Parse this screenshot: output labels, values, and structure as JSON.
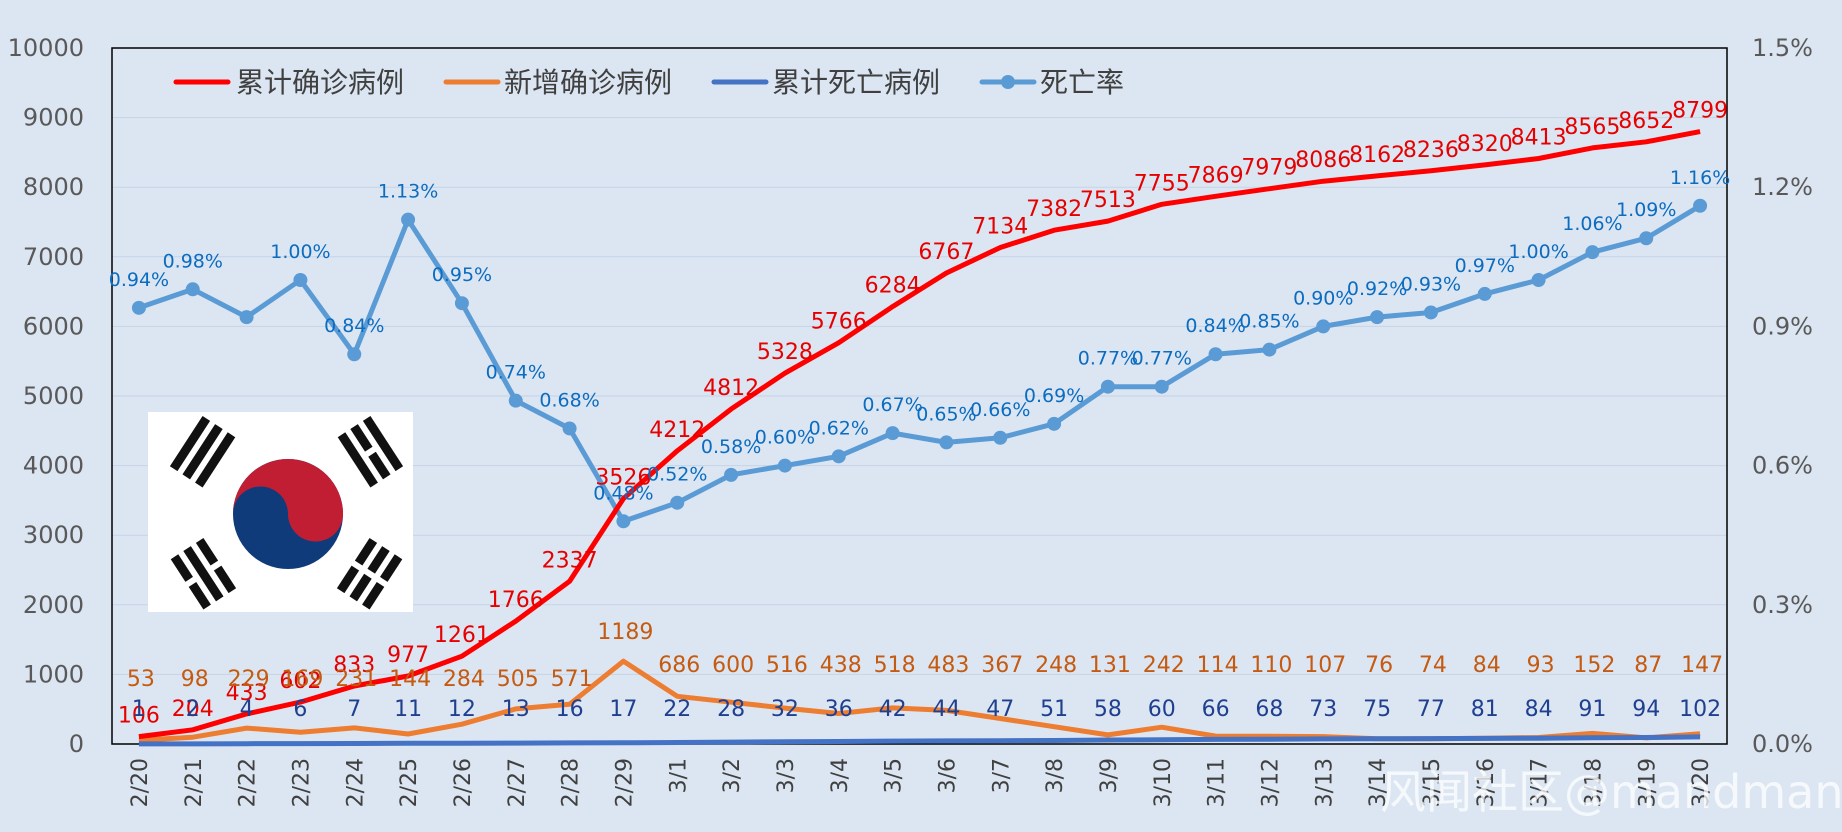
{
  "chart_data": {
    "type": "line",
    "dates": [
      "2/20",
      "2/21",
      "2/22",
      "2/23",
      "2/24",
      "2/25",
      "2/26",
      "2/27",
      "2/28",
      "2/29",
      "3/1",
      "3/2",
      "3/3",
      "3/4",
      "3/5",
      "3/6",
      "3/7",
      "3/8",
      "3/9",
      "3/10",
      "3/11",
      "3/12",
      "3/13",
      "3/14",
      "3/15",
      "3/16",
      "3/17",
      "3/18",
      "3/19",
      "3/20"
    ],
    "y_left_ticks": [
      "0",
      "1000",
      "2000",
      "3000",
      "4000",
      "5000",
      "6000",
      "7000",
      "8000",
      "9000",
      "10000"
    ],
    "y_right_ticks": [
      "0.0%",
      "0.3%",
      "0.6%",
      "0.9%",
      "1.2%",
      "1.5%"
    ],
    "ylim_left": [
      0,
      10000
    ],
    "ylim_right": [
      0,
      1.5
    ],
    "series": [
      {
        "name": "累计确诊病例",
        "color": "#ff0000",
        "axis": "left",
        "values": [
          106,
          204,
          433,
          602,
          833,
          977,
          1261,
          1766,
          2337,
          3526,
          4212,
          4812,
          5328,
          5766,
          6284,
          6767,
          7134,
          7382,
          7513,
          7755,
          7869,
          7979,
          8086,
          8162,
          8236,
          8320,
          8413,
          8565,
          8652,
          8799
        ]
      },
      {
        "name": "新增确诊病例",
        "color": "#ed7d31",
        "axis": "left",
        "values": [
          53,
          98,
          229,
          169,
          231,
          144,
          284,
          505,
          571,
          1189,
          686,
          600,
          516,
          438,
          518,
          483,
          367,
          248,
          131,
          242,
          114,
          110,
          107,
          76,
          74,
          84,
          93,
          152,
          87,
          147
        ]
      },
      {
        "name": "累计死亡病例",
        "color": "#4472c4",
        "axis": "left",
        "values": [
          1,
          2,
          4,
          6,
          7,
          11,
          12,
          13,
          16,
          17,
          22,
          28,
          32,
          36,
          42,
          44,
          47,
          51,
          58,
          60,
          66,
          68,
          73,
          75,
          77,
          81,
          84,
          91,
          94,
          102
        ]
      },
      {
        "name": "死亡率",
        "color": "#5b9bd5",
        "axis": "right",
        "values": [
          0.94,
          0.98,
          0.92,
          1.0,
          0.84,
          1.13,
          0.95,
          0.74,
          0.68,
          0.48,
          0.52,
          0.58,
          0.6,
          0.62,
          0.67,
          0.65,
          0.66,
          0.69,
          0.77,
          0.77,
          0.84,
          0.85,
          0.9,
          0.92,
          0.93,
          0.97,
          1.0,
          1.06,
          1.09,
          1.16
        ]
      }
    ],
    "rate_label_strings": [
      "0.94%",
      "0.98%",
      "",
      "1.00%",
      "0.84%",
      "1.13%",
      "0.95%",
      "0.74%",
      "0.68%",
      "0.48%",
      "0.52%",
      "0.58%",
      "0.60%",
      "0.62%",
      "0.67%",
      "0.65%",
      "0.66%",
      "0.69%",
      "0.77%",
      "0.77%",
      "0.84%",
      "0.85%",
      "0.90%",
      "0.92%",
      "0.93%",
      "0.97%",
      "1.00%",
      "1.06%",
      "1.09%",
      "1.16%"
    ],
    "legend_position": "top-left"
  },
  "watermark": "风闻社区@mandman",
  "flag": {
    "name": "South Korea flag"
  }
}
